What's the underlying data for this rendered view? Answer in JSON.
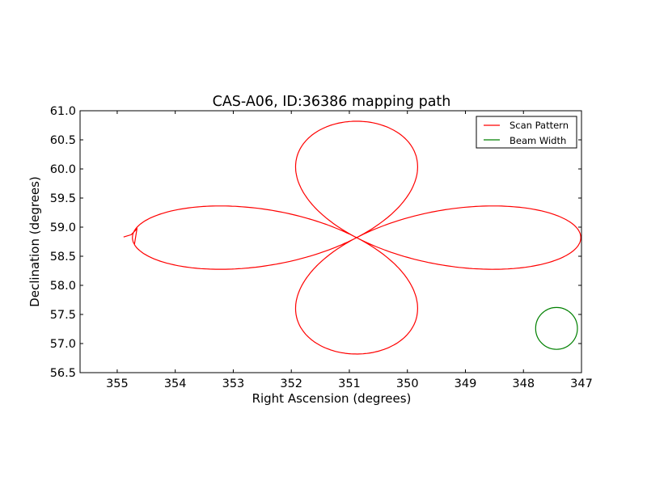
{
  "chart_data": {
    "type": "line",
    "title": "CAS-A06, ID:36386 mapping path",
    "xlabel": "Right Ascension (degrees)",
    "ylabel": "Declination (degrees)",
    "xlim": [
      355.64,
      347.0
    ],
    "ylim": [
      56.5,
      61.0
    ],
    "xticks": [
      355,
      354,
      353,
      352,
      351,
      350,
      349,
      348,
      347
    ],
    "yticks": [
      56.5,
      57.0,
      57.5,
      58.0,
      58.5,
      59.0,
      59.5,
      60.0,
      60.5,
      61.0
    ],
    "ytick_labels": [
      "56.5",
      "57.0",
      "57.5",
      "58.0",
      "58.5",
      "59.0",
      "59.5",
      "60.0",
      "60.5",
      "61.0"
    ],
    "grid": false,
    "legend_placement": "top-right",
    "series": [
      {
        "name": "Scan Pattern",
        "color": "#ff0000",
        "model": {
          "shape": "4-petal rose",
          "center_ra": 350.875,
          "center_dec": 58.82,
          "petal_length_deg": 2.0
        },
        "start_tail": [
          [
            354.89,
            58.83
          ],
          [
            354.76,
            58.87
          ],
          [
            354.66,
            58.97
          ]
        ]
      },
      {
        "name": "Beam Width",
        "color": "#008000",
        "center_ra": 347.43,
        "center_dec": 57.26,
        "radius_deg": 0.36
      }
    ]
  }
}
